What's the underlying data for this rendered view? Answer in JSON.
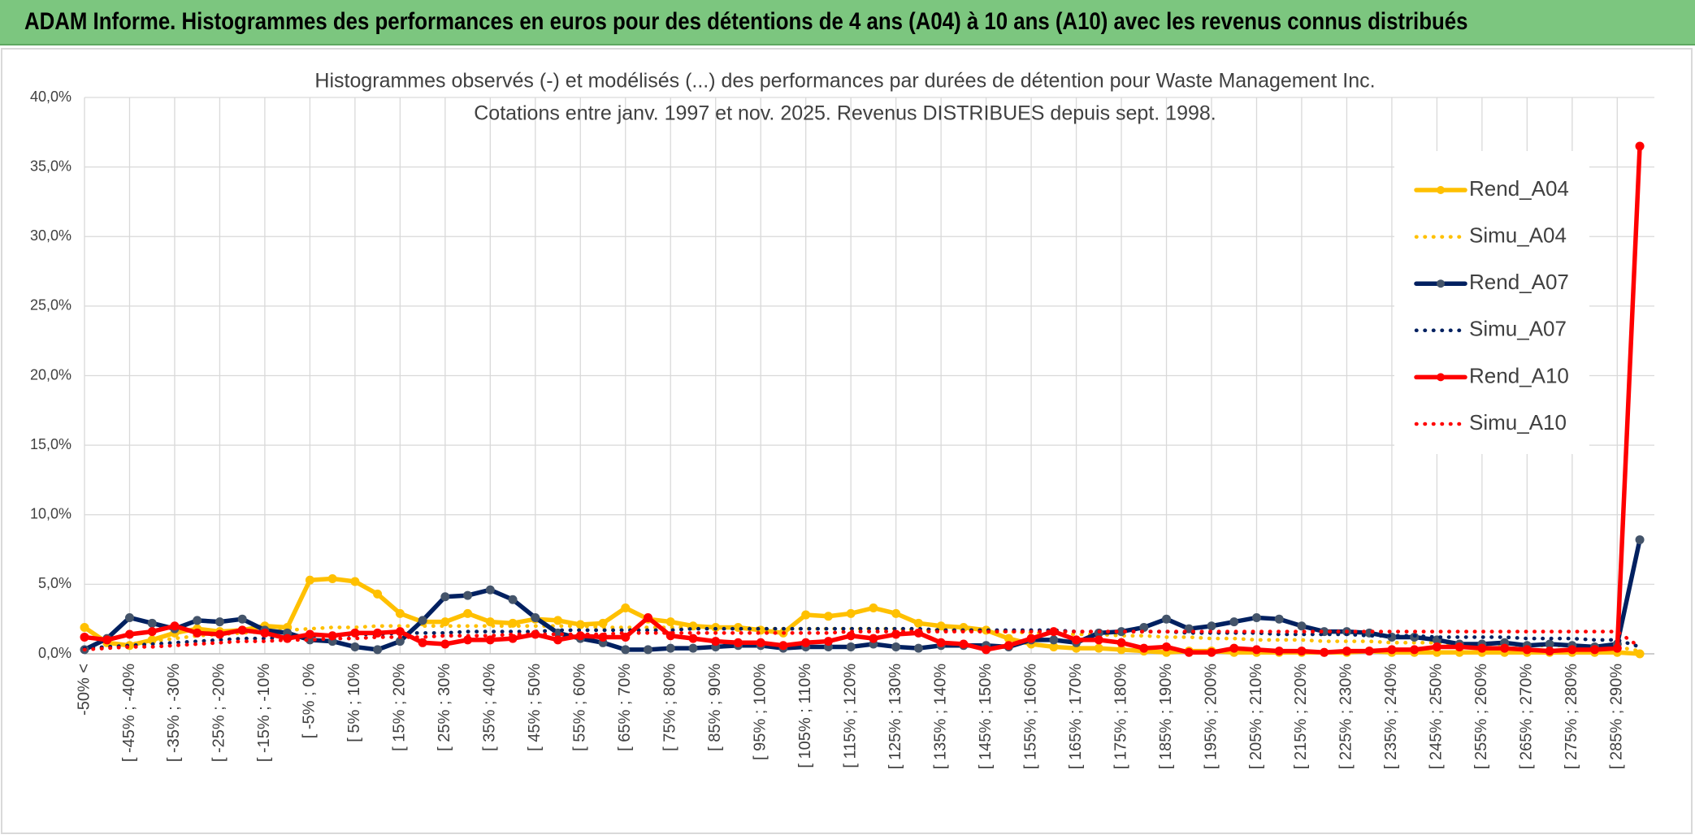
{
  "header": {
    "title": "ADAM Informe. Histogrammes des performances en euros pour des détentions de 4 ans (A04) à 10 ans (A10) avec les revenus connus distribués"
  },
  "chart_data": {
    "type": "line",
    "title": "Histogrammes observés (-) et modélisés (...) des performances par durées de détention pour Waste Management Inc.",
    "subtitle": "Cotations entre janv. 1997 et nov. 2025. Revenus DISTRIBUES depuis sept. 1998.",
    "categories": [
      "-50% <",
      null,
      "[ -45% ; -40%",
      null,
      "[ -35% ; -30%",
      null,
      "[ -25% ; -20%",
      null,
      "[ -15% ; -10%",
      null,
      "[ -5% ; 0%",
      null,
      "[ 5% ; 10%",
      null,
      "[ 15% ; 20%",
      null,
      "[ 25% ; 30%",
      null,
      "[ 35% ; 40%",
      null,
      "[ 45% ; 50%",
      null,
      "[ 55% ; 60%",
      null,
      "[ 65% ; 70%",
      null,
      "[ 75% ; 80%",
      null,
      "[ 85% ; 90%",
      null,
      "[ 95% ; 100%",
      null,
      "[ 105% ; 110%",
      null,
      "[ 115% ; 120%",
      null,
      "[ 125% ; 130%",
      null,
      "[ 135% ; 140%",
      null,
      "[ 145% ; 150%",
      null,
      "[ 155% ; 160%",
      null,
      "[ 165% ; 170%",
      null,
      "[ 175% ; 180%",
      null,
      "[ 185% ; 190%",
      null,
      "[ 195% ; 200%",
      null,
      "[ 205% ; 210%",
      null,
      "[ 215% ; 220%",
      null,
      "[ 225% ; 230%",
      null,
      "[ 235% ; 240%",
      null,
      "[ 245% ; 250%",
      null,
      "[ 255% ; 260%",
      null,
      "[ 265% ; 270%",
      null,
      "[ 275% ; 280%",
      null,
      "[ 285% ; 290%",
      null
    ],
    "series": [
      {
        "name": "Rend_A04",
        "color": "#ffc000",
        "marker_color": "#ffc000",
        "style": "solid",
        "markers": true,
        "values": [
          1.9,
          0.8,
          0.6,
          1.0,
          1.5,
          1.8,
          1.6,
          1.7,
          2.0,
          1.9,
          5.3,
          5.4,
          5.2,
          4.3,
          2.9,
          2.3,
          2.3,
          2.9,
          2.3,
          2.2,
          2.5,
          2.4,
          2.1,
          2.2,
          3.3,
          2.5,
          2.3,
          2.0,
          1.9,
          1.9,
          1.7,
          1.5,
          2.8,
          2.7,
          2.9,
          3.3,
          2.9,
          2.2,
          2.0,
          1.9,
          1.7,
          1.1,
          0.7,
          0.5,
          0.4,
          0.4,
          0.3,
          0.2,
          0.1,
          0.2,
          0.2,
          0.1,
          0.1,
          0.1,
          0.1,
          0.1,
          0.1,
          0.2,
          0.1,
          0.1,
          0.1,
          0.1,
          0.1,
          0.1,
          0.1,
          0.1,
          0.1,
          0.1,
          0.1,
          0.0
        ]
      },
      {
        "name": "Simu_A04",
        "color": "#ffc000",
        "style": "dotted",
        "markers": false,
        "values": [
          0.3,
          0.5,
          0.7,
          0.9,
          1.1,
          1.3,
          1.4,
          1.5,
          1.6,
          1.7,
          1.8,
          1.9,
          1.9,
          2.0,
          2.0,
          2.0,
          2.0,
          2.0,
          2.0,
          2.0,
          2.0,
          2.0,
          2.0,
          1.9,
          1.9,
          1.9,
          1.9,
          1.9,
          1.9,
          1.9,
          1.8,
          1.8,
          1.8,
          1.8,
          1.8,
          1.8,
          1.8,
          1.7,
          1.7,
          1.7,
          1.6,
          1.6,
          1.5,
          1.5,
          1.4,
          1.4,
          1.3,
          1.3,
          1.2,
          1.2,
          1.1,
          1.1,
          1.0,
          1.0,
          1.0,
          0.9,
          0.9,
          0.9,
          0.8,
          0.8,
          0.8,
          0.7,
          0.7,
          0.7,
          0.6,
          0.6,
          0.6,
          0.5,
          0.5,
          0.2
        ]
      },
      {
        "name": "Rend_A07",
        "color": "#002060",
        "marker_color": "#44546a",
        "style": "solid",
        "markers": true,
        "values": [
          0.3,
          1.1,
          2.6,
          2.2,
          1.8,
          2.4,
          2.3,
          2.5,
          1.7,
          1.5,
          1.0,
          0.9,
          0.5,
          0.3,
          0.9,
          2.4,
          4.1,
          4.2,
          4.6,
          3.9,
          2.6,
          1.5,
          1.1,
          0.8,
          0.3,
          0.3,
          0.4,
          0.4,
          0.5,
          0.6,
          0.6,
          0.4,
          0.5,
          0.5,
          0.5,
          0.7,
          0.5,
          0.4,
          0.6,
          0.6,
          0.6,
          0.5,
          1.0,
          1.0,
          0.8,
          1.5,
          1.6,
          1.9,
          2.5,
          1.8,
          2.0,
          2.3,
          2.6,
          2.5,
          2.0,
          1.6,
          1.6,
          1.5,
          1.2,
          1.2,
          1.0,
          0.7,
          0.7,
          0.8,
          0.6,
          0.7,
          0.6,
          0.5,
          0.7,
          8.2
        ]
      },
      {
        "name": "Simu_A07",
        "color": "#002060",
        "style": "dotted",
        "markers": false,
        "values": [
          0.4,
          0.5,
          0.6,
          0.7,
          0.8,
          0.9,
          1.0,
          1.1,
          1.1,
          1.2,
          1.3,
          1.3,
          1.4,
          1.4,
          1.5,
          1.5,
          1.5,
          1.6,
          1.6,
          1.6,
          1.6,
          1.7,
          1.7,
          1.7,
          1.7,
          1.7,
          1.7,
          1.8,
          1.8,
          1.8,
          1.8,
          1.8,
          1.8,
          1.8,
          1.8,
          1.8,
          1.8,
          1.8,
          1.7,
          1.7,
          1.7,
          1.7,
          1.7,
          1.7,
          1.6,
          1.6,
          1.6,
          1.6,
          1.6,
          1.5,
          1.5,
          1.5,
          1.5,
          1.4,
          1.4,
          1.4,
          1.4,
          1.3,
          1.3,
          1.3,
          1.2,
          1.2,
          1.2,
          1.2,
          1.1,
          1.1,
          1.1,
          1.0,
          1.0,
          0.5
        ]
      },
      {
        "name": "Rend_A10",
        "color": "#ff0000",
        "marker_color": "#ff0000",
        "style": "solid",
        "markers": true,
        "values": [
          1.2,
          1.0,
          1.4,
          1.6,
          2.0,
          1.5,
          1.4,
          1.7,
          1.5,
          1.1,
          1.4,
          1.3,
          1.5,
          1.5,
          1.6,
          0.8,
          0.7,
          1.0,
          1.0,
          1.1,
          1.4,
          1.0,
          1.3,
          1.2,
          1.2,
          2.6,
          1.3,
          1.1,
          0.9,
          0.8,
          0.8,
          0.6,
          0.8,
          0.9,
          1.3,
          1.1,
          1.4,
          1.5,
          0.8,
          0.7,
          0.3,
          0.6,
          1.1,
          1.6,
          1.0,
          1.0,
          0.8,
          0.4,
          0.5,
          0.1,
          0.1,
          0.4,
          0.3,
          0.2,
          0.2,
          0.1,
          0.2,
          0.2,
          0.3,
          0.3,
          0.5,
          0.5,
          0.4,
          0.4,
          0.3,
          0.2,
          0.3,
          0.3,
          0.4,
          36.5
        ]
      },
      {
        "name": "Simu_A10",
        "color": "#ff0000",
        "style": "dotted",
        "markers": false,
        "values": [
          0.3,
          0.4,
          0.5,
          0.5,
          0.6,
          0.7,
          0.8,
          0.9,
          0.9,
          1.0,
          1.0,
          1.1,
          1.1,
          1.2,
          1.2,
          1.2,
          1.3,
          1.3,
          1.3,
          1.4,
          1.4,
          1.4,
          1.4,
          1.4,
          1.5,
          1.5,
          1.5,
          1.5,
          1.5,
          1.5,
          1.5,
          1.5,
          1.5,
          1.5,
          1.6,
          1.6,
          1.6,
          1.6,
          1.6,
          1.6,
          1.6,
          1.6,
          1.6,
          1.6,
          1.6,
          1.6,
          1.6,
          1.6,
          1.6,
          1.6,
          1.6,
          1.6,
          1.6,
          1.6,
          1.6,
          1.6,
          1.6,
          1.6,
          1.6,
          1.6,
          1.6,
          1.6,
          1.6,
          1.6,
          1.6,
          1.6,
          1.6,
          1.6,
          1.6,
          0.5
        ]
      }
    ],
    "ylim": [
      0,
      40
    ],
    "yticks": [
      {
        "value": 0,
        "label": "0,0%"
      },
      {
        "value": 5,
        "label": "5,0%"
      },
      {
        "value": 10,
        "label": "10,0%"
      },
      {
        "value": 15,
        "label": "15,0%"
      },
      {
        "value": 20,
        "label": "20,0%"
      },
      {
        "value": 25,
        "label": "25,0%"
      },
      {
        "value": 30,
        "label": "30,0%"
      },
      {
        "value": 35,
        "label": "35,0%"
      },
      {
        "value": 40,
        "label": "40,0%"
      }
    ],
    "grid": true,
    "legend": "right"
  }
}
